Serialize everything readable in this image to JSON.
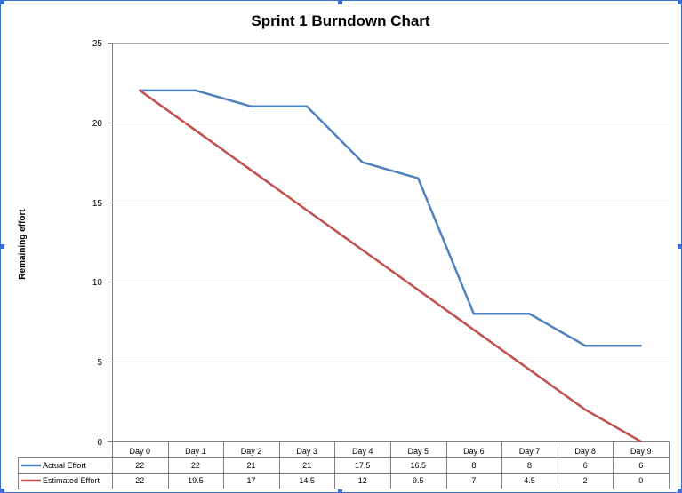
{
  "chart_data": {
    "type": "line",
    "title": "Sprint 1 Burndown Chart",
    "xlabel": "",
    "ylabel": "Remaining effort",
    "ylim": [
      0,
      25
    ],
    "yticks": [
      0,
      5,
      10,
      15,
      20,
      25
    ],
    "grid": true,
    "legend": "data table",
    "categories": [
      "Day 0",
      "Day 1",
      "Day 2",
      "Day 3",
      "Day 4",
      "Day 5",
      "Day 6",
      "Day 7",
      "Day 8",
      "Day 9"
    ],
    "series": [
      {
        "name": "Actual Effort",
        "color": "#4f81bd",
        "values": [
          22,
          22,
          21,
          21,
          17.5,
          16.5,
          8,
          8,
          6,
          6
        ],
        "labels": [
          "22",
          "22",
          "21",
          "21",
          "17.5",
          "16.5",
          "8",
          "8",
          "6",
          "6"
        ]
      },
      {
        "name": "Estimated Effort",
        "color": "#c0504d",
        "values": [
          22,
          19.5,
          17,
          14.5,
          12,
          9.5,
          7,
          4.5,
          2,
          0
        ],
        "labels": [
          "22",
          "19.5",
          "17",
          "14.5",
          "12",
          "9.5",
          "7",
          "4.5",
          "2",
          "0"
        ]
      }
    ]
  }
}
